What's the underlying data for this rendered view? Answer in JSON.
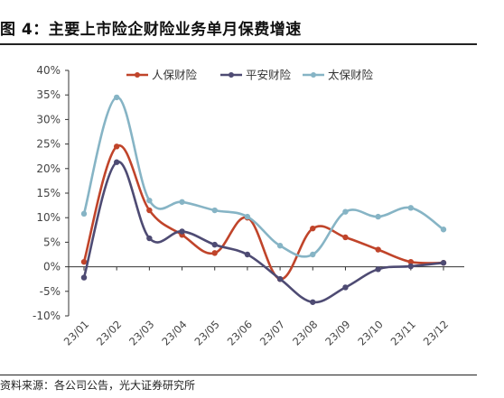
{
  "figure": {
    "title": "图 4：主要上市险企财险业务单月保费增速",
    "source": "资料来源：各公司公告，光大证券研究所"
  },
  "chart_data": {
    "type": "line",
    "categories": [
      "23/01",
      "23/02",
      "23/03",
      "23/04",
      "23/05",
      "23/06",
      "23/07",
      "23/08",
      "23/09",
      "23/10",
      "23/11",
      "23/12"
    ],
    "series": [
      {
        "name": "人保财险",
        "color": "#C0442A",
        "values": [
          1.0,
          24.5,
          11.5,
          6.5,
          2.8,
          10.0,
          -2.5,
          7.8,
          6.0,
          3.5,
          1.0,
          0.8
        ]
      },
      {
        "name": "平安财险",
        "color": "#4E4B73",
        "values": [
          -2.2,
          21.3,
          5.8,
          7.2,
          4.5,
          2.5,
          -2.5,
          -7.2,
          -4.2,
          -0.5,
          0.1,
          0.8
        ]
      },
      {
        "name": "太保财险",
        "color": "#86B4C5",
        "values": [
          10.8,
          34.5,
          13.5,
          13.2,
          11.5,
          10.2,
          4.3,
          2.5,
          11.2,
          10.2,
          12.0,
          7.6
        ]
      }
    ],
    "ylim": [
      -10,
      40
    ],
    "yticks": [
      -10,
      -5,
      0,
      5,
      10,
      15,
      20,
      25,
      30,
      35,
      40
    ],
    "ytick_format": "percent",
    "legend_position": "top",
    "grid": false,
    "xlabel": "",
    "ylabel": ""
  }
}
